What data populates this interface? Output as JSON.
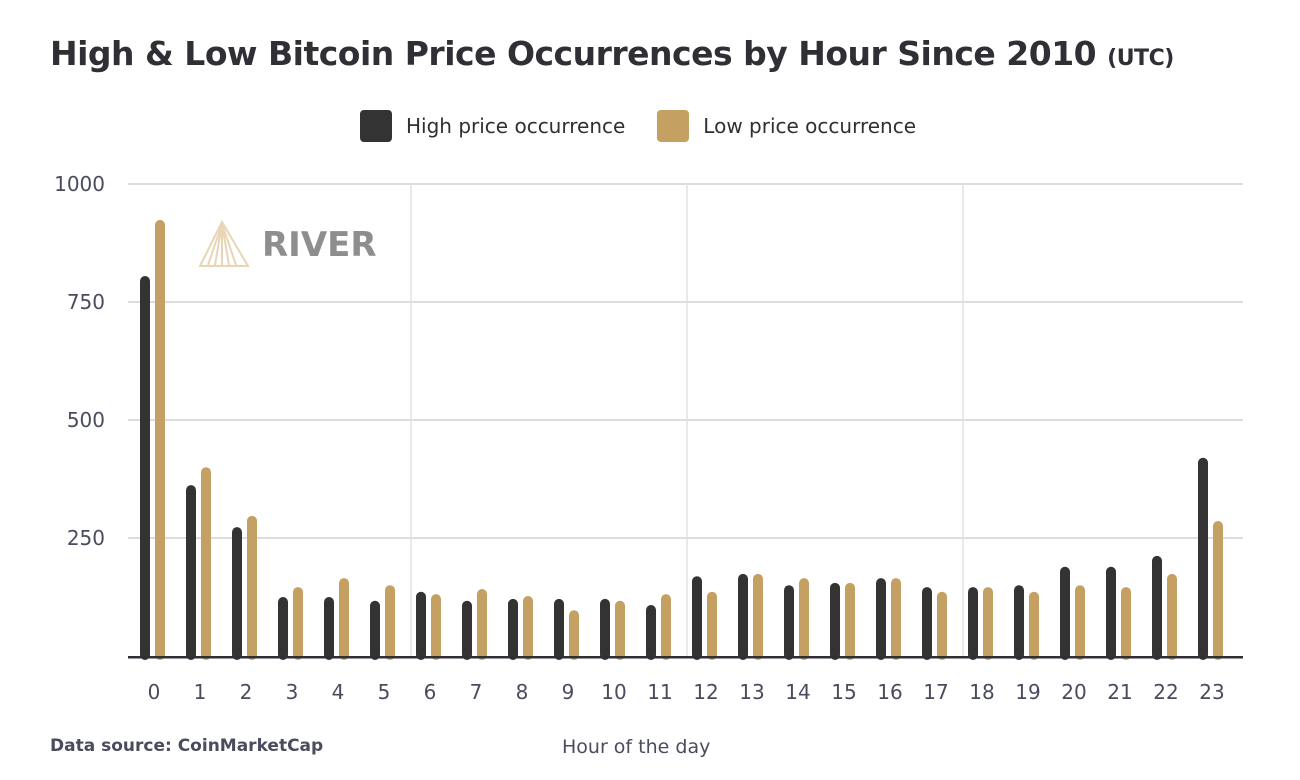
{
  "chart_data": {
    "type": "bar",
    "title": "High & Low Bitcoin Price Occurrences by Hour Since 2010",
    "title_suffix": "(UTC)",
    "xlabel": "Hour of the day",
    "ylabel": "",
    "ylim": [
      0,
      1000
    ],
    "yticks": [
      "250",
      "500",
      "750",
      "1000"
    ],
    "categories": [
      "0",
      "1",
      "2",
      "3",
      "4",
      "5",
      "6",
      "7",
      "8",
      "9",
      "10",
      "11",
      "12",
      "13",
      "14",
      "15",
      "16",
      "17",
      "18",
      "19",
      "20",
      "21",
      "22",
      "23"
    ],
    "series": [
      {
        "name": "High price occurrence",
        "color": "#333333",
        "values": [
          805,
          362,
          273,
          125,
          125,
          117,
          136,
          117,
          121,
          121,
          121,
          108,
          169,
          174,
          150,
          155,
          165,
          146,
          146,
          150,
          189,
          189,
          212,
          420
        ]
      },
      {
        "name": "Low price occurrence",
        "color": "#c4a163",
        "values": [
          924,
          400,
          297,
          146,
          165,
          150,
          131,
          142,
          127,
          97,
          117,
          131,
          136,
          174,
          165,
          155,
          165,
          136,
          146,
          136,
          150,
          146,
          174,
          286
        ]
      }
    ],
    "legend": "top-center",
    "grid": true,
    "source": "Data source: CoinMarketCap",
    "watermark": "RIVER"
  }
}
